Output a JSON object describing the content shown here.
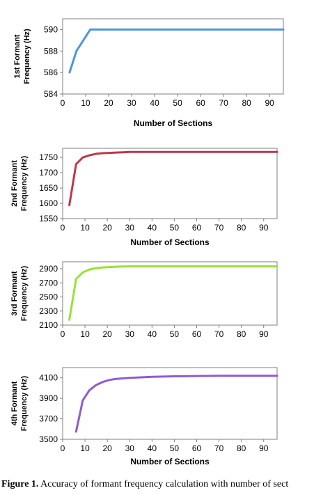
{
  "caption": {
    "label": "Figure 1.",
    "text": "Accuracy of formant frequency calculation with number of sect"
  },
  "chart_data": [
    {
      "type": "line",
      "xlabel": "Number of Sections",
      "ylabel": [
        "1st Formant",
        "Frequency (Hz)"
      ],
      "xlim": [
        0,
        96
      ],
      "ylim": [
        584,
        591
      ],
      "xticks": [
        0,
        10,
        20,
        30,
        40,
        50,
        60,
        70,
        80,
        90
      ],
      "yticks": [
        584,
        586,
        588,
        590
      ],
      "color": "#4f94dc",
      "series": [
        {
          "x": [
            3,
            6,
            9,
            12,
            15,
            20,
            30,
            40,
            50,
            60,
            70,
            80,
            90,
            96
          ],
          "y": [
            586,
            588,
            589,
            590,
            590,
            590,
            590,
            590,
            590,
            590,
            590,
            590,
            590,
            590
          ]
        }
      ]
    },
    {
      "type": "line",
      "xlabel": "Number of Sections",
      "ylabel": [
        "2nd Formant",
        "Frequency (Hz)"
      ],
      "xlim": [
        0,
        96
      ],
      "ylim": [
        1550,
        1780
      ],
      "xticks": [
        0,
        10,
        20,
        30,
        40,
        50,
        60,
        70,
        80,
        90
      ],
      "yticks": [
        1550,
        1600,
        1650,
        1700,
        1750
      ],
      "color": "#c0364a",
      "series": [
        {
          "x": [
            3,
            6,
            9,
            12,
            15,
            18,
            21,
            24,
            27,
            30,
            40,
            50,
            60,
            70,
            80,
            90,
            96
          ],
          "y": [
            1594,
            1728,
            1750,
            1757,
            1762,
            1764,
            1765,
            1766,
            1767,
            1768,
            1768,
            1768,
            1768,
            1768,
            1768,
            1768,
            1768
          ]
        }
      ]
    },
    {
      "type": "line",
      "xlabel": "",
      "ylabel": [
        "3rd Formant",
        "Frequency (Hz)"
      ],
      "xlim": [
        0,
        96
      ],
      "ylim": [
        2100,
        3000
      ],
      "xticks": [
        0,
        10,
        20,
        30,
        40,
        50,
        60,
        70,
        80,
        90
      ],
      "yticks": [
        2100,
        2300,
        2500,
        2700,
        2900
      ],
      "color": "#99e233",
      "series": [
        {
          "x": [
            3,
            6,
            9,
            12,
            15,
            18,
            21,
            24,
            27,
            30,
            40,
            50,
            60,
            70,
            80,
            90,
            96
          ],
          "y": [
            2175,
            2755,
            2850,
            2890,
            2910,
            2920,
            2925,
            2930,
            2933,
            2935,
            2935,
            2935,
            2935,
            2935,
            2935,
            2935,
            2935
          ]
        }
      ]
    },
    {
      "type": "line",
      "xlabel": "Number of Sections",
      "ylabel": [
        "4th Formant",
        "Frequency (Hz)"
      ],
      "xlim": [
        0,
        96
      ],
      "ylim": [
        3500,
        4200
      ],
      "xticks": [
        0,
        10,
        20,
        30,
        40,
        50,
        60,
        70,
        80,
        90
      ],
      "yticks": [
        3500,
        3700,
        3900,
        4100
      ],
      "color": "#8e5bd4",
      "series": [
        {
          "x": [
            6,
            9,
            12,
            15,
            18,
            21,
            24,
            27,
            30,
            35,
            40,
            50,
            60,
            70,
            80,
            90,
            96
          ],
          "y": [
            3575,
            3880,
            3980,
            4030,
            4060,
            4080,
            4090,
            4095,
            4100,
            4105,
            4110,
            4115,
            4118,
            4120,
            4120,
            4120,
            4120
          ]
        }
      ]
    }
  ]
}
